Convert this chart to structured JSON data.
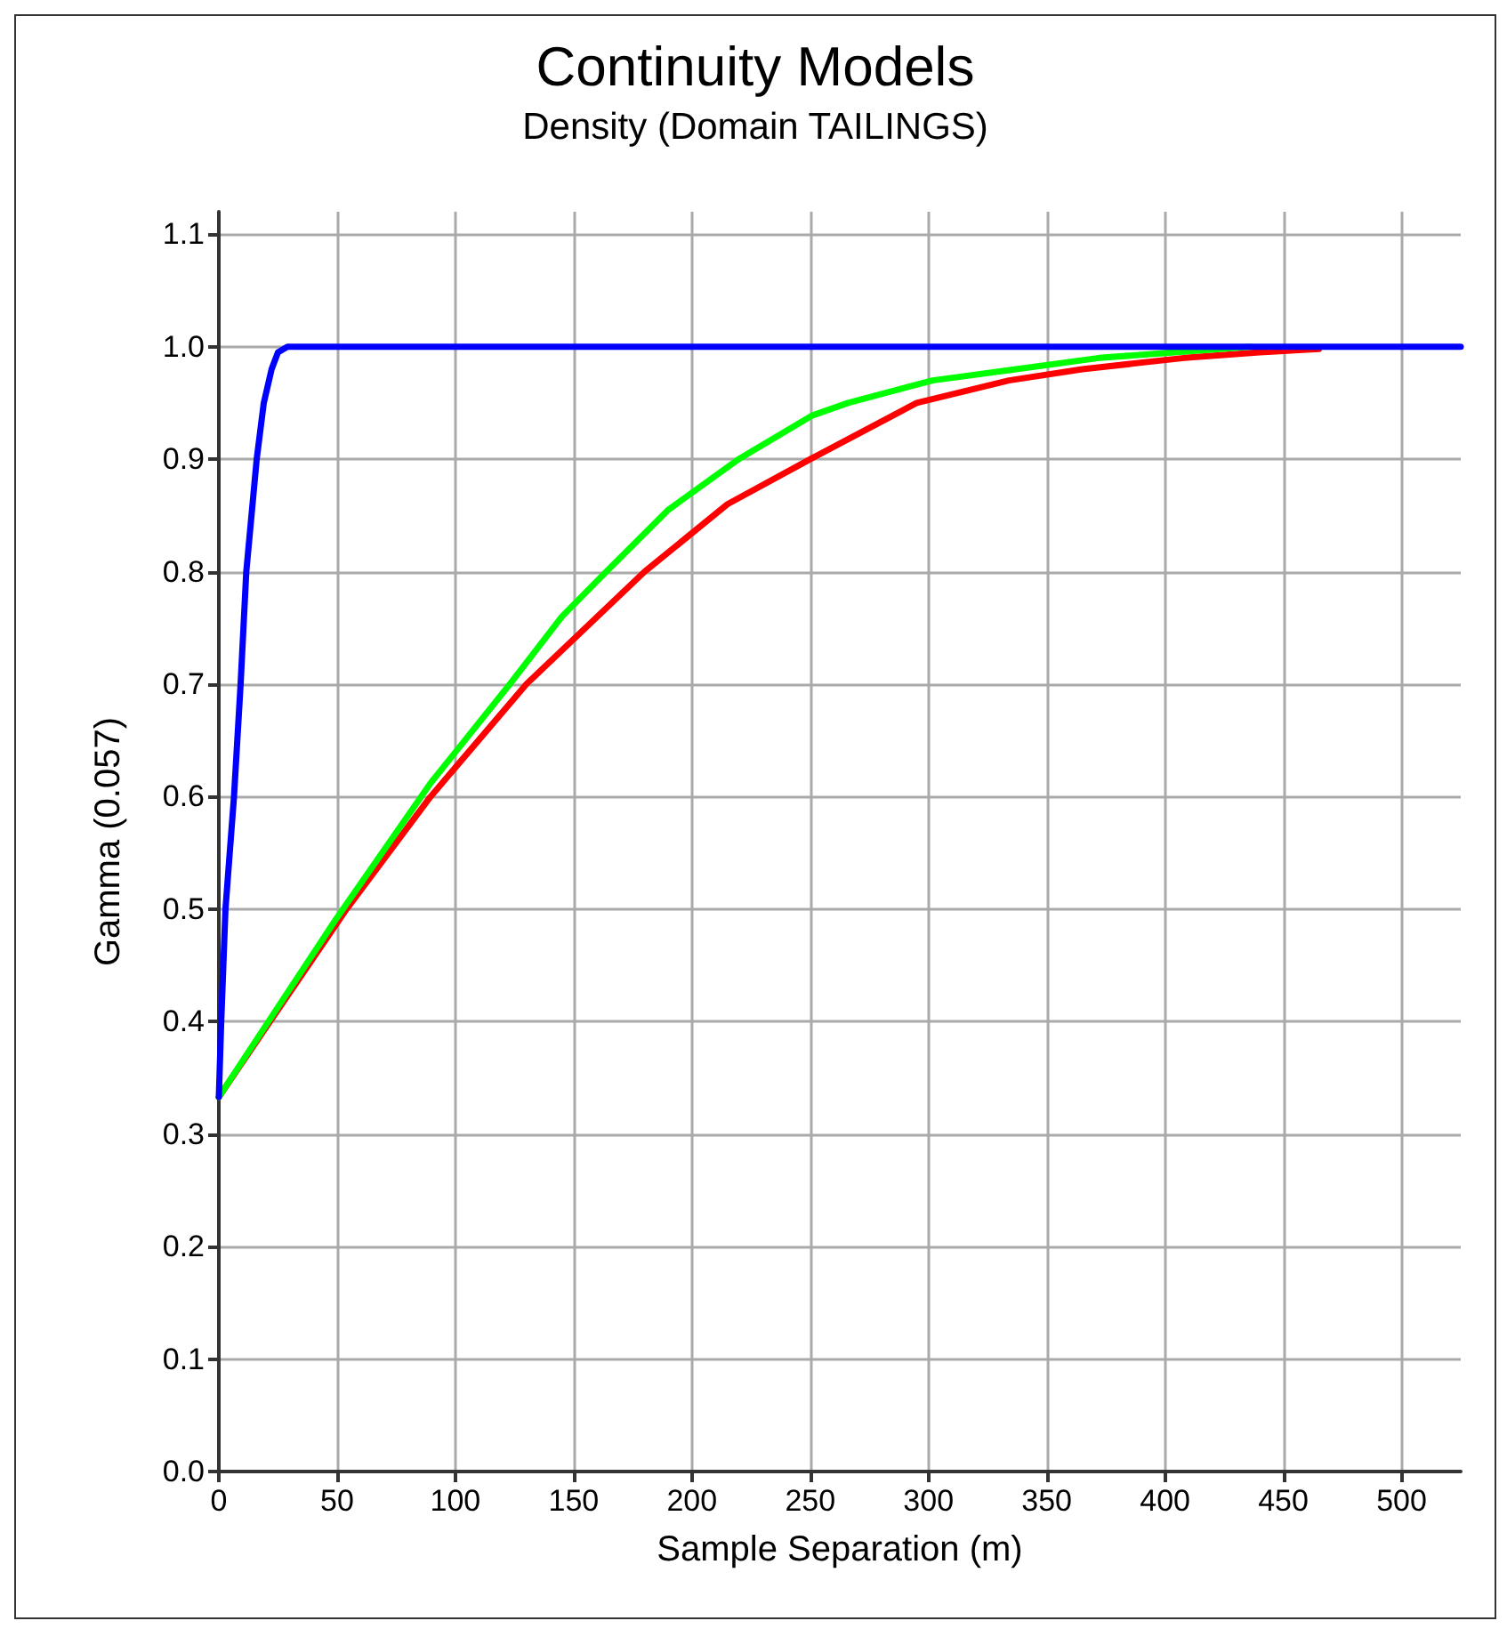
{
  "chart_data": {
    "type": "line",
    "title": "Continuity Models",
    "subtitle": "Density (Domain TAILINGS)",
    "xlabel": "Sample Separation (m)",
    "ylabel": "Gamma (0.057)",
    "series": [
      {
        "color": "#ff0000",
        "x": [
          0,
          20,
          54,
          89.5,
          130,
          155,
          180,
          215,
          250,
          295,
          334,
          365,
          408,
          440,
          465
        ],
        "values": [
          0.333,
          0.395,
          0.5,
          0.6,
          0.7,
          0.75,
          0.8,
          0.86,
          0.9,
          0.95,
          0.97,
          0.98,
          0.99,
          0.995,
          0.998
        ]
      },
      {
        "color": "#00ff00",
        "x": [
          0,
          20,
          49.5,
          89.5,
          123,
          145,
          163.8,
          190,
          219.7,
          251,
          266,
          301.7,
          337,
          372,
          436
        ],
        "values": [
          0.333,
          0.397,
          0.491,
          0.612,
          0.7,
          0.76,
          0.8,
          0.855,
          0.9,
          0.939,
          0.95,
          0.97,
          0.98,
          0.99,
          1.0
        ]
      },
      {
        "color": "#0000ff",
        "x": [
          0,
          1,
          2.8,
          6.4,
          9.2,
          11.6,
          16,
          19,
          22.3,
          25,
          29,
          525
        ],
        "values": [
          0.333,
          0.4,
          0.5,
          0.6,
          0.7,
          0.8,
          0.9,
          0.95,
          0.98,
          0.995,
          1.0,
          1.0
        ]
      }
    ],
    "xlim": [
      0,
      525
    ],
    "xticks": [
      0,
      50,
      100,
      150,
      200,
      250,
      300,
      350,
      400,
      450,
      500
    ],
    "ylim": [
      0,
      1.12
    ],
    "yticks": [
      {
        "value": 0,
        "label": "0.0"
      },
      0.1,
      0.2,
      0.3,
      0.4,
      0.5,
      0.6,
      0.7,
      0.8,
      0.9,
      {
        "value": 1,
        "label": "1.0"
      },
      1.1
    ],
    "grid": true,
    "marker": "none",
    "line_style": "solid"
  }
}
